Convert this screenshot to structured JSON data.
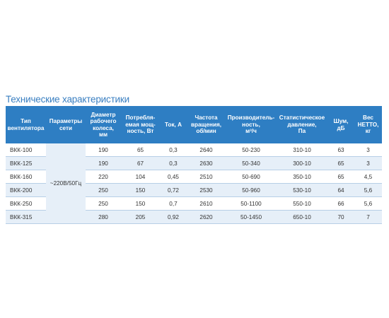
{
  "title": "Технические характеристики",
  "table": {
    "headers": [
      "Тип\nвентилятора",
      "Параметры\nсети",
      "Диаметр\nрабочего\nколеса,\nмм",
      "Потребля-\nемая мощ-\nность, Вт",
      "Ток, А",
      "Частота\nвращения,\nоб/мин",
      "Производитель-\nность,\nм³/ч",
      "Статистическое\nдавление,\nПа",
      "Шум,\nдБ",
      "Вес\nНЕТТО,\nкг"
    ],
    "network_params": "~220В/50Гц",
    "rows": [
      {
        "type": "ВКК-100",
        "diameter": "190",
        "power": "65",
        "current": "0,3",
        "rpm": "2640",
        "capacity": "50-230",
        "pressure": "310-10",
        "noise": "63",
        "weight": "3"
      },
      {
        "type": "ВКК-125",
        "diameter": "190",
        "power": "67",
        "current": "0,3",
        "rpm": "2630",
        "capacity": "50-340",
        "pressure": "300-10",
        "noise": "65",
        "weight": "3"
      },
      {
        "type": "ВКК-160",
        "diameter": "220",
        "power": "104",
        "current": "0,45",
        "rpm": "2510",
        "capacity": "50-690",
        "pressure": "350-10",
        "noise": "65",
        "weight": "4,5"
      },
      {
        "type": "ВКК-200",
        "diameter": "250",
        "power": "150",
        "current": "0,72",
        "rpm": "2530",
        "capacity": "50-960",
        "pressure": "530-10",
        "noise": "64",
        "weight": "5,6"
      },
      {
        "type": "ВКК-250",
        "diameter": "250",
        "power": "150",
        "current": "0,7",
        "rpm": "2610",
        "capacity": "50-1100",
        "pressure": "550-10",
        "noise": "66",
        "weight": "5,6"
      },
      {
        "type": "ВКК-315",
        "diameter": "280",
        "power": "205",
        "current": "0,92",
        "rpm": "2620",
        "capacity": "50-1450",
        "pressure": "650-10",
        "noise": "70",
        "weight": "7"
      }
    ]
  },
  "colors": {
    "header_bg": "#2e7ec3",
    "title": "#3a7fc1",
    "stripe": "#e6eff8"
  }
}
